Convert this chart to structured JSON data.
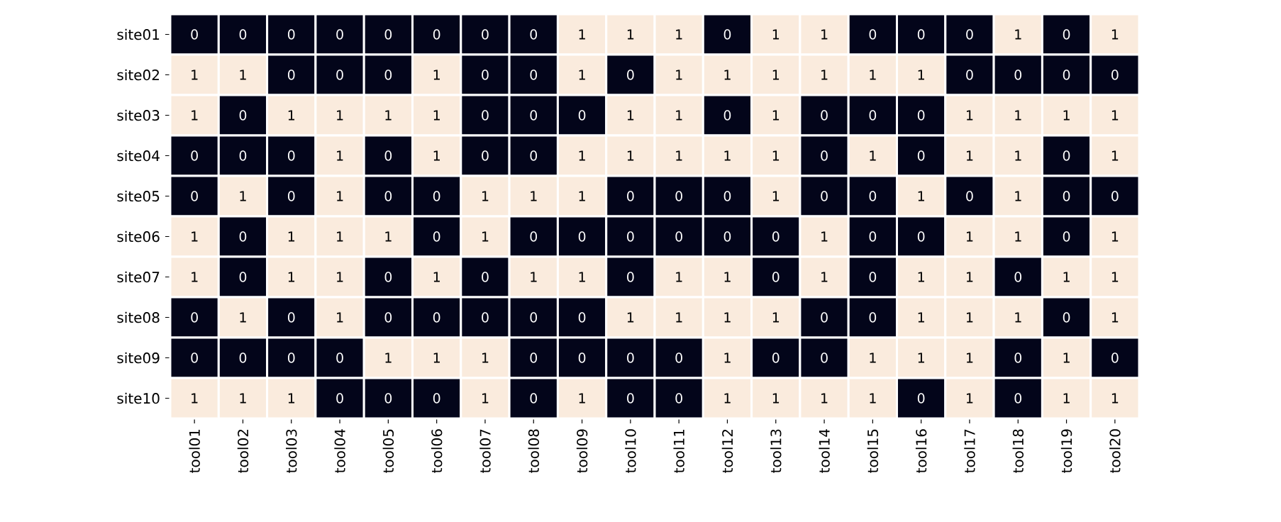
{
  "chart_data": {
    "type": "heatmap",
    "categories": [
      "tool01",
      "tool02",
      "tool03",
      "tool04",
      "tool05",
      "tool06",
      "tool07",
      "tool08",
      "tool09",
      "tool10",
      "tool11",
      "tool12",
      "tool13",
      "tool14",
      "tool15",
      "tool16",
      "tool17",
      "tool18",
      "tool19",
      "tool20"
    ],
    "y_categories": [
      "site01",
      "site02",
      "site03",
      "site04",
      "site05",
      "site06",
      "site07",
      "site08",
      "site09",
      "site10"
    ],
    "cells": [
      [
        0,
        0,
        0,
        0,
        0,
        0,
        0,
        0,
        1,
        1,
        1,
        0,
        1,
        1,
        0,
        0,
        0,
        1,
        0,
        1
      ],
      [
        1,
        1,
        0,
        0,
        0,
        1,
        0,
        0,
        1,
        0,
        1,
        1,
        1,
        1,
        1,
        1,
        0,
        0,
        0,
        0
      ],
      [
        1,
        0,
        1,
        1,
        1,
        1,
        0,
        0,
        0,
        1,
        1,
        0,
        1,
        0,
        0,
        0,
        1,
        1,
        1,
        1
      ],
      [
        0,
        0,
        0,
        1,
        0,
        1,
        0,
        0,
        1,
        1,
        1,
        1,
        1,
        0,
        1,
        0,
        1,
        1,
        0,
        1
      ],
      [
        0,
        1,
        0,
        1,
        0,
        0,
        1,
        1,
        1,
        0,
        0,
        0,
        1,
        0,
        0,
        1,
        0,
        1,
        0,
        0
      ],
      [
        1,
        0,
        1,
        1,
        1,
        0,
        1,
        0,
        0,
        0,
        0,
        0,
        0,
        1,
        0,
        0,
        1,
        1,
        0,
        1
      ],
      [
        1,
        0,
        1,
        1,
        0,
        1,
        0,
        1,
        1,
        0,
        1,
        1,
        0,
        1,
        0,
        1,
        1,
        0,
        1,
        1
      ],
      [
        0,
        1,
        0,
        1,
        0,
        0,
        0,
        0,
        0,
        1,
        1,
        1,
        1,
        0,
        0,
        1,
        1,
        1,
        0,
        1
      ],
      [
        0,
        0,
        0,
        0,
        1,
        1,
        1,
        0,
        0,
        0,
        0,
        1,
        0,
        0,
        1,
        1,
        1,
        0,
        1,
        0
      ],
      [
        1,
        1,
        1,
        0,
        0,
        0,
        1,
        0,
        1,
        0,
        0,
        1,
        1,
        1,
        1,
        0,
        1,
        0,
        1,
        1
      ]
    ],
    "colors": [
      "#03051a",
      "#faebdd"
    ],
    "data_labels": true
  }
}
